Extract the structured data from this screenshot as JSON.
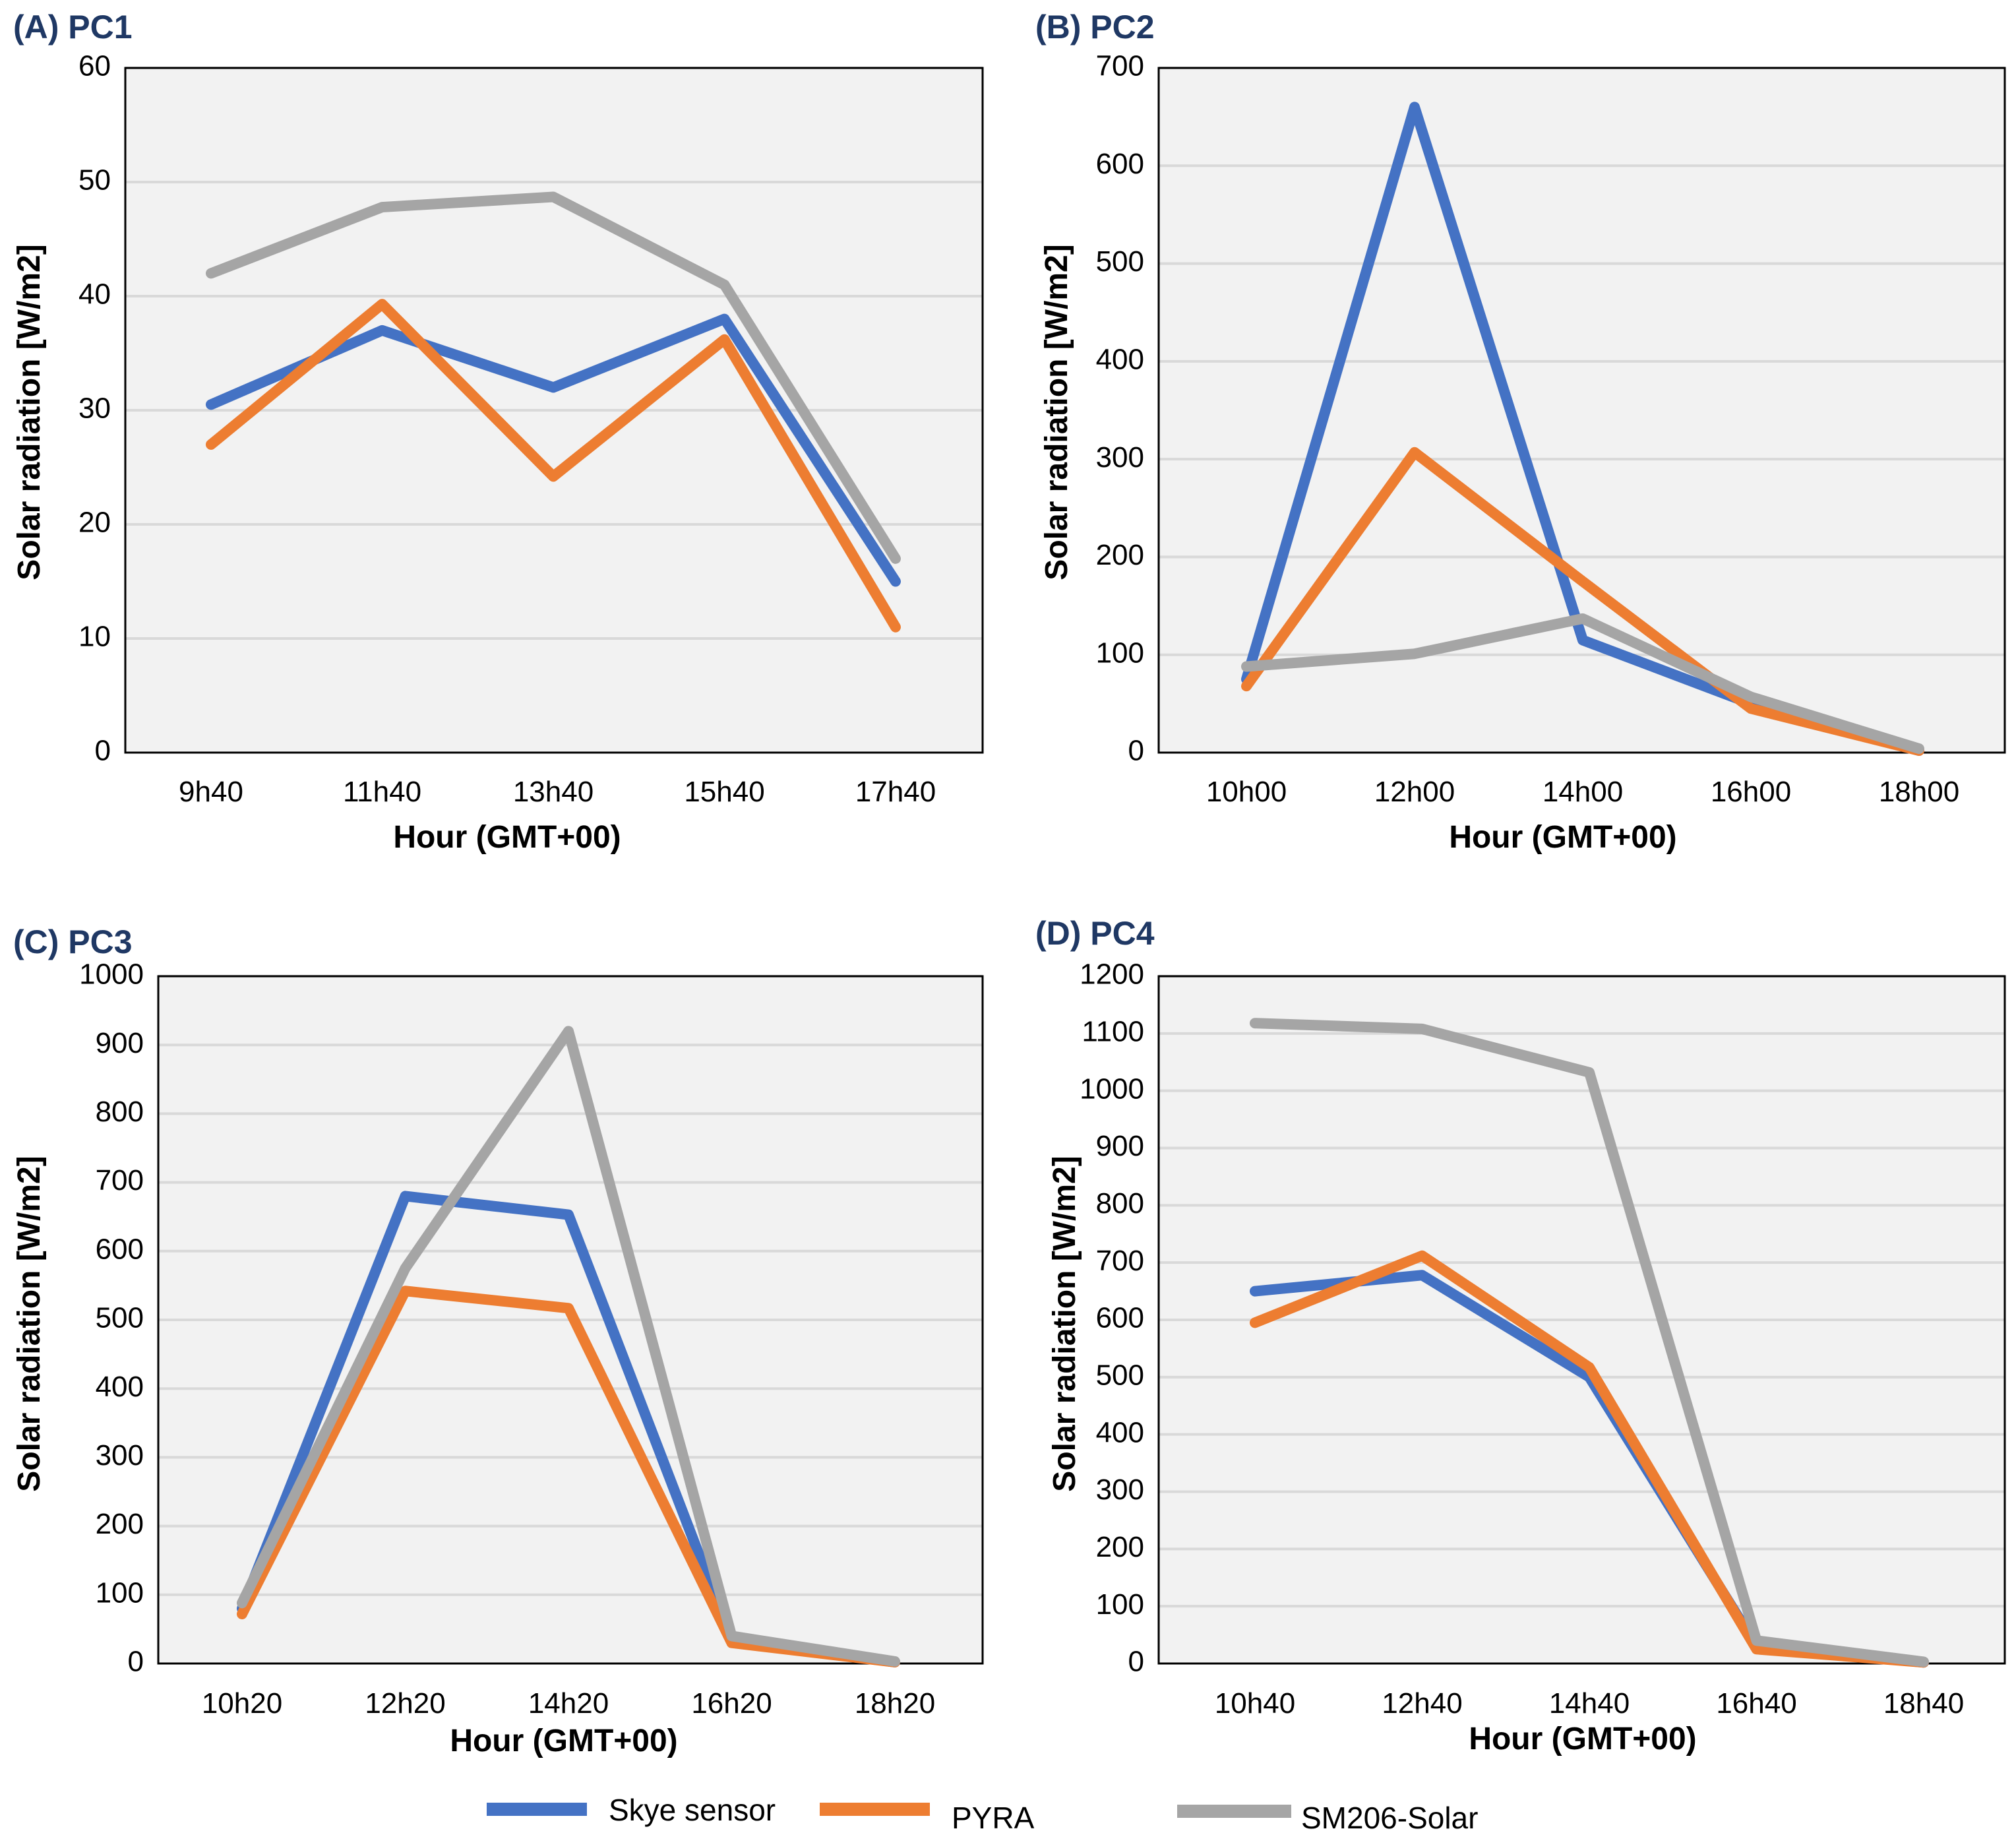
{
  "colors": {
    "Skye sensor": "#4472c4",
    "PYRA": "#ed7d31",
    "SM206-Solar": "#a5a5a5",
    "plot_bg": "#f2f2f2",
    "grid": "#d9d9d9",
    "panel_label": "#1f3864"
  },
  "legend": [
    "Skye sensor",
    "PYRA",
    "SM206-Solar"
  ],
  "chart_data": [
    {
      "type": "line",
      "title": "(A) PC1",
      "xlabel": "Hour (GMT+00)",
      "ylabel": "Solar radiation  [W/m2]",
      "categories": [
        "9h40",
        "11h40",
        "13h40",
        "15h40",
        "17h40"
      ],
      "ylim": [
        0,
        60
      ],
      "yticks": [
        0,
        10,
        20,
        30,
        40,
        50,
        60
      ],
      "series": [
        {
          "name": "Skye sensor",
          "values": [
            30.5,
            37,
            32,
            38,
            15
          ]
        },
        {
          "name": "PYRA",
          "values": [
            27,
            39.3,
            24.2,
            36.2,
            11
          ]
        },
        {
          "name": "SM206-Solar",
          "values": [
            42,
            47.8,
            48.7,
            41,
            17
          ]
        }
      ]
    },
    {
      "type": "line",
      "title": "(B) PC2",
      "xlabel": "Hour (GMT+00)",
      "ylabel": "Solar radiation  [W/m2]",
      "categories": [
        "10h00",
        "12h00",
        "14h00",
        "16h00",
        "18h00"
      ],
      "ylim": [
        0,
        700
      ],
      "yticks": [
        0,
        100,
        200,
        300,
        400,
        500,
        600,
        700
      ],
      "series": [
        {
          "name": "Skye sensor",
          "values": [
            75,
            660,
            115,
            50,
            2
          ]
        },
        {
          "name": "PYRA",
          "values": [
            68,
            307,
            175,
            45,
            2
          ]
        },
        {
          "name": "SM206-Solar",
          "values": [
            88,
            101,
            137,
            57,
            4
          ]
        }
      ]
    },
    {
      "type": "line",
      "title": "(C) PC3",
      "xlabel": "Hour (GMT+00)",
      "ylabel": "Solar radiation [W/m2]",
      "categories": [
        "10h20",
        "12h20",
        "14h20",
        "16h20",
        "18h20"
      ],
      "ylim": [
        0,
        1000
      ],
      "yticks": [
        0,
        100,
        200,
        300,
        400,
        500,
        600,
        700,
        800,
        900,
        1000
      ],
      "series": [
        {
          "name": "Skye sensor",
          "values": [
            80,
            680,
            653,
            35,
            2
          ]
        },
        {
          "name": "PYRA",
          "values": [
            72,
            542,
            517,
            30,
            2
          ]
        },
        {
          "name": "SM206-Solar",
          "values": [
            88,
            575,
            920,
            40,
            3
          ]
        }
      ]
    },
    {
      "type": "line",
      "title": "(D) PC4",
      "xlabel": "Hour (GMT+00)",
      "ylabel": "Solar radiation [W/m2]",
      "categories": [
        "10h40",
        "12h40",
        "14h40",
        "16h40",
        "18h40"
      ],
      "ylim": [
        0,
        1200
      ],
      "yticks": [
        0,
        100,
        200,
        300,
        400,
        500,
        600,
        700,
        800,
        900,
        1000,
        1100,
        1200
      ],
      "series": [
        {
          "name": "Skye sensor",
          "values": [
            650,
            678,
            500,
            30,
            2
          ]
        },
        {
          "name": "PYRA",
          "values": [
            595,
            712,
            517,
            25,
            2
          ]
        },
        {
          "name": "SM206-Solar",
          "values": [
            1118,
            1108,
            1032,
            40,
            3
          ]
        }
      ]
    }
  ]
}
